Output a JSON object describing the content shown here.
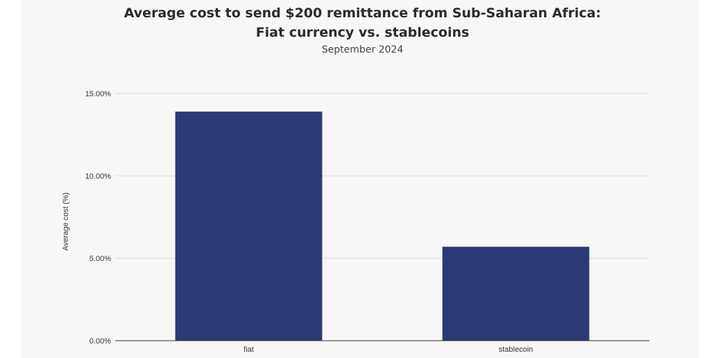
{
  "chart_data": {
    "type": "bar",
    "title_line1": "Average cost to send $200 remittance from Sub-Saharan Africa:",
    "title_line2": "Fiat currency vs. stablecoins",
    "subtitle": "September 2024",
    "xlabel": "",
    "ylabel": "Average cost (%)",
    "categories": [
      "fiat",
      "stablecoin"
    ],
    "values": [
      13.9,
      5.7
    ],
    "ylim": [
      0,
      15
    ],
    "yticks": [
      0,
      5,
      10,
      15
    ],
    "ytick_labels": [
      "0.00%",
      "5.00%",
      "10.00%",
      "15.00%"
    ],
    "grid": true,
    "legend": "none",
    "bar_color": "#2b3a72",
    "grid_color": "#d9d9d9"
  }
}
